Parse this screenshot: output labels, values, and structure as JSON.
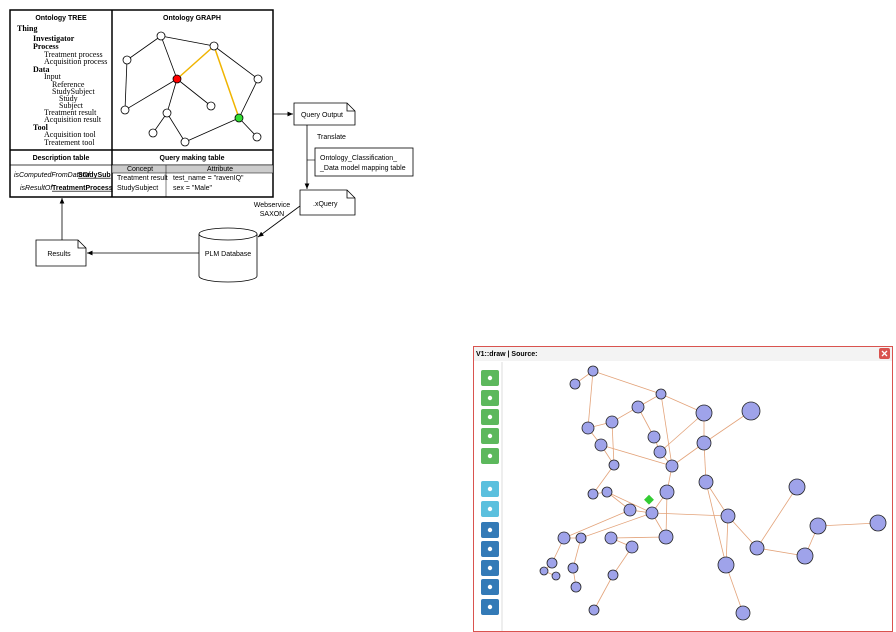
{
  "workflow": {
    "tree_title": "Ontology TREE",
    "graph_title": "Ontology GRAPH",
    "tree": [
      "Thing",
      "Investigator",
      "Process",
      "Treatment process",
      "Acquisition process",
      "Data",
      "Input",
      "Reference",
      "StudySubject",
      "Study",
      "Subject",
      "Treatment result",
      "Acquisition result",
      "Tool",
      "Acquisition tool",
      "Treatement tool"
    ],
    "description_title": "Description table",
    "description_rows": [
      [
        "isComputedFromDataOf",
        "StudySub"
      ],
      [
        "isResultOf",
        "TreatmentProcess"
      ]
    ],
    "query_title": "Query making table",
    "query_header": [
      "Concept",
      "Attribute"
    ],
    "query_rows": [
      [
        "Treatment result",
        "test_name = \"ravenIQ\""
      ],
      [
        "StudySubject",
        "sex = \"Male\""
      ]
    ],
    "query_output": "Query Output",
    "translate": "Translate",
    "mapping": [
      "Ontology_Classification_",
      "_Data model mapping table"
    ],
    "xquery": ".xQuery",
    "webservice": [
      "Webservice",
      "SAXON"
    ],
    "database": "PLM Database",
    "results": "Results"
  },
  "window": {
    "title": "V1::draw | Source:"
  }
}
